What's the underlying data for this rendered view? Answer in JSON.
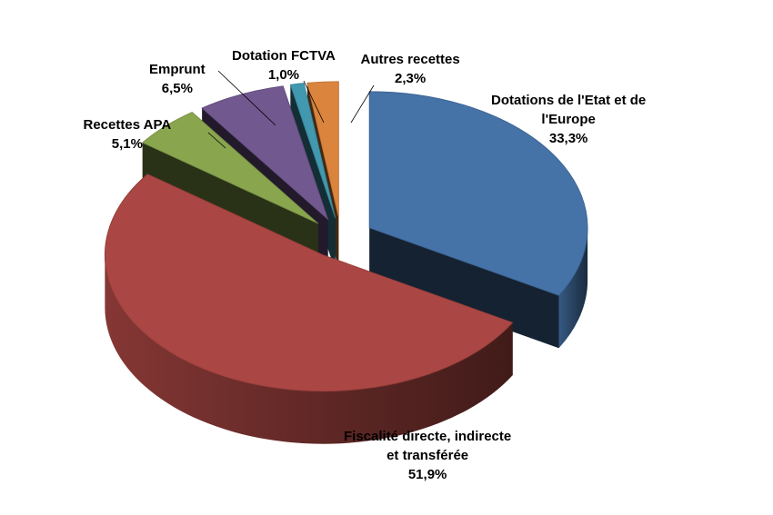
{
  "chart_data": {
    "type": "pie",
    "title": "",
    "slices": [
      {
        "label": "Dotations de l'Etat et de l'Europe",
        "label_lines": [
          "Dotations de l'Etat et de",
          "l'Europe"
        ],
        "value": 33.3,
        "value_text": "33,3%",
        "color": "#4572A7"
      },
      {
        "label": "Fiscalité directe, indirecte et transférée",
        "label_lines": [
          "Fiscalité directe, indirecte",
          "et transférée"
        ],
        "value": 51.9,
        "value_text": "51,9%",
        "color": "#AA4643"
      },
      {
        "label": "Recettes APA",
        "label_lines": [
          "Recettes APA"
        ],
        "value": 5.1,
        "value_text": "5,1%",
        "color": "#89A54E"
      },
      {
        "label": "Emprunt",
        "label_lines": [
          "Emprunt"
        ],
        "value": 6.5,
        "value_text": "6,5%",
        "color": "#71588F"
      },
      {
        "label": "Dotation FCTVA",
        "label_lines": [
          "Dotation FCTVA"
        ],
        "value": 1.0,
        "value_text": "1,0%",
        "color": "#4198AF"
      },
      {
        "label": "Autres recettes",
        "label_lines": [
          "Autres recettes"
        ],
        "value": 2.3,
        "value_text": "2,3%",
        "color": "#DB843D"
      }
    ],
    "exploded": true,
    "three_d": true,
    "legend": "none",
    "label_style": "outside with leader lines"
  }
}
